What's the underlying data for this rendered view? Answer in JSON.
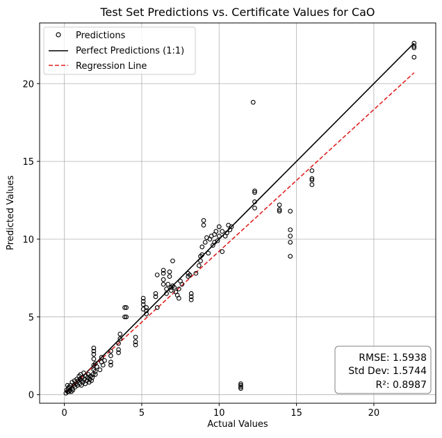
{
  "chart_data": {
    "type": "scatter",
    "title": "Test Set Predictions vs. Certificate Values for CaO",
    "xlabel": "Actual Values",
    "ylabel": "Predicted Values",
    "xlim": [
      -1.6,
      24.0
    ],
    "ylim": [
      -0.55,
      23.9
    ],
    "xticks": [
      0,
      5,
      10,
      15,
      20
    ],
    "yticks": [
      0,
      5,
      10,
      15,
      20
    ],
    "grid": true,
    "legend_position": "top-left",
    "legend": [
      {
        "label": "Predictions",
        "style": "marker"
      },
      {
        "label": "Perfect Predictions (1:1)",
        "style": "solid"
      },
      {
        "label": "Regression Line",
        "style": "dashed"
      }
    ],
    "series": [
      {
        "name": "Predictions",
        "type": "scatter",
        "color": "#000000",
        "points": [
          [
            0.1,
            0.1
          ],
          [
            0.15,
            0.3
          ],
          [
            0.2,
            0.2
          ],
          [
            0.2,
            0.6
          ],
          [
            0.25,
            0.4
          ],
          [
            0.3,
            0.2
          ],
          [
            0.3,
            0.5
          ],
          [
            0.35,
            0.3
          ],
          [
            0.4,
            0.6
          ],
          [
            0.45,
            0.2
          ],
          [
            0.5,
            0.4
          ],
          [
            0.5,
            0.8
          ],
          [
            0.55,
            0.3
          ],
          [
            0.6,
            0.6
          ],
          [
            0.65,
            0.9
          ],
          [
            0.7,
            0.5
          ],
          [
            0.75,
            0.7
          ],
          [
            0.8,
            1.0
          ],
          [
            0.85,
            0.6
          ],
          [
            0.9,
            0.9
          ],
          [
            0.95,
            1.2
          ],
          [
            1.0,
            0.7
          ],
          [
            1.0,
            1.0
          ],
          [
            1.05,
            1.3
          ],
          [
            1.1,
            0.6
          ],
          [
            1.1,
            0.9
          ],
          [
            1.15,
            1.1
          ],
          [
            1.2,
            0.8
          ],
          [
            1.25,
            1.4
          ],
          [
            1.3,
            1.0
          ],
          [
            1.35,
            0.7
          ],
          [
            1.4,
            1.2
          ],
          [
            1.45,
            0.9
          ],
          [
            1.5,
            1.1
          ],
          [
            1.55,
            1.3
          ],
          [
            1.6,
            0.8
          ],
          [
            1.65,
            1.0
          ],
          [
            1.7,
            1.2
          ],
          [
            1.75,
            0.9
          ],
          [
            1.8,
            1.1
          ],
          [
            1.85,
            1.3
          ],
          [
            1.9,
            1.6
          ],
          [
            1.9,
            1.9
          ],
          [
            1.9,
            2.3
          ],
          [
            1.9,
            2.6
          ],
          [
            1.9,
            2.8
          ],
          [
            1.9,
            3.0
          ],
          [
            2.0,
            1.3
          ],
          [
            2.0,
            1.5
          ],
          [
            2.0,
            2.0
          ],
          [
            2.1,
            1.8
          ],
          [
            2.3,
            1.6
          ],
          [
            2.4,
            2.1
          ],
          [
            2.4,
            2.4
          ],
          [
            2.5,
            1.9
          ],
          [
            2.6,
            2.2
          ],
          [
            3.0,
            1.9
          ],
          [
            3.0,
            2.1
          ],
          [
            3.0,
            2.5
          ],
          [
            3.0,
            2.8
          ],
          [
            3.5,
            2.7
          ],
          [
            3.5,
            2.9
          ],
          [
            3.5,
            3.3
          ],
          [
            3.6,
            3.6
          ],
          [
            3.6,
            3.9
          ],
          [
            3.9,
            5.0
          ],
          [
            3.9,
            5.6
          ],
          [
            4.0,
            5.0
          ],
          [
            4.0,
            5.6
          ],
          [
            4.6,
            3.2
          ],
          [
            4.6,
            3.4
          ],
          [
            4.6,
            3.7
          ],
          [
            5.1,
            5.5
          ],
          [
            5.1,
            5.8
          ],
          [
            5.1,
            6.0
          ],
          [
            5.1,
            6.2
          ],
          [
            5.3,
            5.2
          ],
          [
            5.3,
            5.4
          ],
          [
            5.3,
            5.6
          ],
          [
            5.9,
            6.3
          ],
          [
            5.9,
            6.5
          ],
          [
            6.0,
            7.7
          ],
          [
            6.0,
            5.6
          ],
          [
            6.4,
            7.1
          ],
          [
            6.4,
            7.4
          ],
          [
            6.4,
            7.8
          ],
          [
            6.4,
            8.0
          ],
          [
            6.6,
            6.5
          ],
          [
            6.6,
            6.8
          ],
          [
            6.7,
            7.1
          ],
          [
            6.8,
            7.9
          ],
          [
            6.8,
            7.6
          ],
          [
            6.9,
            6.7
          ],
          [
            6.9,
            6.9
          ],
          [
            7.0,
            8.6
          ],
          [
            7.0,
            7.0
          ],
          [
            7.1,
            6.9
          ],
          [
            7.2,
            6.6
          ],
          [
            7.3,
            6.4
          ],
          [
            7.4,
            6.2
          ],
          [
            7.4,
            6.8
          ],
          [
            7.5,
            7.3
          ],
          [
            7.6,
            7.1
          ],
          [
            8.0,
            7.6
          ],
          [
            8.0,
            7.8
          ],
          [
            8.1,
            7.7
          ],
          [
            8.2,
            6.1
          ],
          [
            8.2,
            6.3
          ],
          [
            8.2,
            6.5
          ],
          [
            8.5,
            7.8
          ],
          [
            8.7,
            8.3
          ],
          [
            8.8,
            8.6
          ],
          [
            8.8,
            8.9
          ],
          [
            8.9,
            9.0
          ],
          [
            8.9,
            9.5
          ],
          [
            9.0,
            11.2
          ],
          [
            9.0,
            10.9
          ],
          [
            9.1,
            9.8
          ],
          [
            9.2,
            10.1
          ],
          [
            9.3,
            9.1
          ],
          [
            9.4,
            10.0
          ],
          [
            9.5,
            10.2
          ],
          [
            9.6,
            9.6
          ],
          [
            9.7,
            9.8
          ],
          [
            9.7,
            10.3
          ],
          [
            9.8,
            10.5
          ],
          [
            9.9,
            9.9
          ],
          [
            10.0,
            10.8
          ],
          [
            10.0,
            10.2
          ],
          [
            10.2,
            9.2
          ],
          [
            10.2,
            10.5
          ],
          [
            10.4,
            10.2
          ],
          [
            10.5,
            10.4
          ],
          [
            10.6,
            10.9
          ],
          [
            10.7,
            10.6
          ],
          [
            10.8,
            10.8
          ],
          [
            11.4,
            0.4
          ],
          [
            11.4,
            0.5
          ],
          [
            11.4,
            0.6
          ],
          [
            11.4,
            0.7
          ],
          [
            12.2,
            18.8
          ],
          [
            12.3,
            13.0
          ],
          [
            12.3,
            13.1
          ],
          [
            12.3,
            12.4
          ],
          [
            12.3,
            12.0
          ],
          [
            13.9,
            12.2
          ],
          [
            13.9,
            11.9
          ],
          [
            13.9,
            11.8
          ],
          [
            14.6,
            11.8
          ],
          [
            14.6,
            10.6
          ],
          [
            14.6,
            10.2
          ],
          [
            14.6,
            9.8
          ],
          [
            14.6,
            8.9
          ],
          [
            16.0,
            14.4
          ],
          [
            16.0,
            13.9
          ],
          [
            16.0,
            13.8
          ],
          [
            16.0,
            13.5
          ],
          [
            22.6,
            22.6
          ],
          [
            22.6,
            22.4
          ],
          [
            22.6,
            22.3
          ],
          [
            22.6,
            21.7
          ]
        ]
      },
      {
        "name": "Perfect Predictions (1:1)",
        "type": "line",
        "style": "solid",
        "color": "#000000",
        "x": [
          0.1,
          22.6
        ],
        "y": [
          0.1,
          22.6
        ]
      },
      {
        "name": "Regression Line",
        "type": "line",
        "style": "dashed",
        "color": "#e02020",
        "x": [
          0.1,
          22.6
        ],
        "y": [
          0.2,
          20.7
        ]
      }
    ],
    "annotations": {
      "rmse_label": "RMSE: 1.5938",
      "std_label": "Std Dev: 1.5744",
      "r2_label": "R²: 0.8987",
      "position": "bottom-right"
    }
  }
}
